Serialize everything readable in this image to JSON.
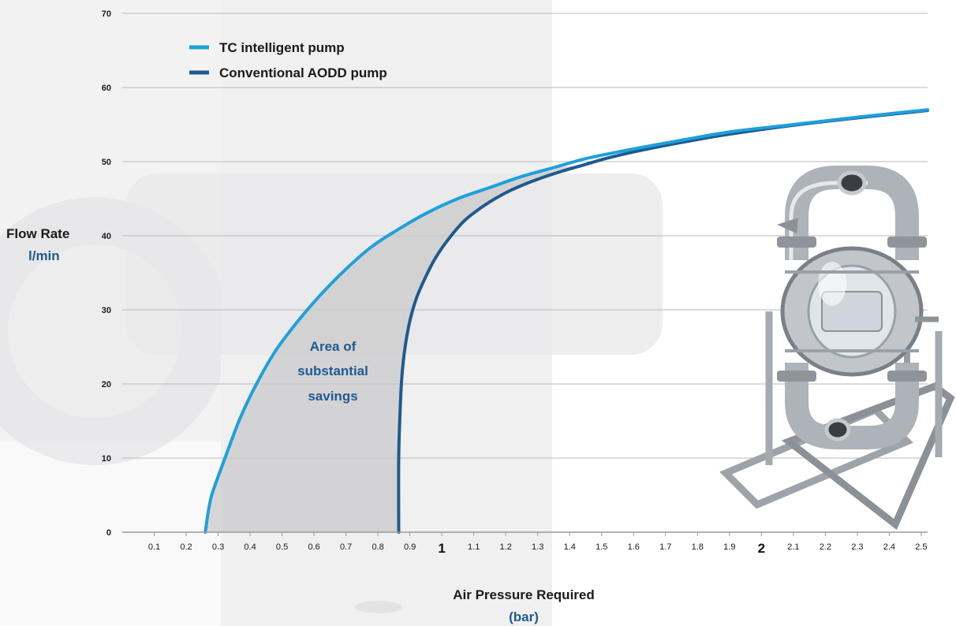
{
  "chart_data": {
    "type": "line",
    "xlabel": "Air Pressure Required",
    "xunit": "(bar)",
    "ylabel": "Flow Rate",
    "yunit": "l/min",
    "xlim": [
      0,
      2.52
    ],
    "ylim": [
      0,
      70
    ],
    "xticks": [
      {
        "value": 0.1,
        "label": "0.1"
      },
      {
        "value": 0.2,
        "label": "0.2"
      },
      {
        "value": 0.3,
        "label": "0.3"
      },
      {
        "value": 0.4,
        "label": "0.4"
      },
      {
        "value": 0.5,
        "label": "0.5"
      },
      {
        "value": 0.6,
        "label": "0.6"
      },
      {
        "value": 0.7,
        "label": "0.7"
      },
      {
        "value": 0.8,
        "label": "0.8"
      },
      {
        "value": 0.9,
        "label": "0.9"
      },
      {
        "value": 1.0,
        "label": "1",
        "major": true
      },
      {
        "value": 1.1,
        "label": "1.1"
      },
      {
        "value": 1.2,
        "label": "1.2"
      },
      {
        "value": 1.3,
        "label": "1.3"
      },
      {
        "value": 1.4,
        "label": "1.4"
      },
      {
        "value": 1.5,
        "label": "1.5"
      },
      {
        "value": 1.6,
        "label": "1.6"
      },
      {
        "value": 1.7,
        "label": "1.7"
      },
      {
        "value": 1.8,
        "label": "1.8"
      },
      {
        "value": 1.9,
        "label": "1.9"
      },
      {
        "value": 2.0,
        "label": "2",
        "major": true
      },
      {
        "value": 2.1,
        "label": "2.1"
      },
      {
        "value": 2.2,
        "label": "2.2"
      },
      {
        "value": 2.3,
        "label": "2.3"
      },
      {
        "value": 2.4,
        "label": "2.4"
      },
      {
        "value": 2.5,
        "label": "2.5"
      }
    ],
    "yticks": [
      0,
      10,
      20,
      30,
      40,
      50,
      60,
      70
    ],
    "grid": true,
    "legend_position": "top-left",
    "series": [
      {
        "name": "TC intelligent pump",
        "color": "#1ea0dc",
        "x": [
          0.26,
          0.27,
          0.28,
          0.3,
          0.33,
          0.37,
          0.42,
          0.48,
          0.55,
          0.62,
          0.7,
          0.78,
          0.85,
          0.95,
          1.05,
          1.15,
          1.25,
          1.35,
          1.45,
          1.55,
          1.7,
          1.9,
          2.1,
          2.3,
          2.52
        ],
        "y": [
          0,
          3,
          5,
          7.5,
          11,
          15.5,
          20,
          24.5,
          28.5,
          32,
          35.5,
          38.5,
          40.5,
          43,
          45,
          46.5,
          48,
          49.2,
          50.4,
          51.3,
          52.5,
          54,
          55,
          56,
          57
        ]
      },
      {
        "name": "Conventional AODD pump",
        "color": "#1f5a8f",
        "x": [
          0.865,
          0.865,
          0.87,
          0.875,
          0.885,
          0.9,
          0.92,
          0.95,
          0.98,
          1.02,
          1.07,
          1.13,
          1.2,
          1.28,
          1.36,
          1.44,
          1.52,
          1.62,
          1.75,
          1.9,
          2.1,
          2.3,
          2.52
        ],
        "y": [
          0,
          10,
          17,
          21,
          25,
          28.5,
          31.5,
          34.5,
          37,
          39.5,
          42,
          44,
          45.8,
          47.3,
          48.5,
          49.5,
          50.5,
          51.5,
          52.6,
          53.7,
          54.9,
          55.9,
          56.9
        ]
      }
    ],
    "annotation": [
      "Area of",
      "substantial",
      "savings"
    ]
  },
  "bg": {
    "fill_color": "#e0e0e2",
    "card_color": "#f2f2f3"
  },
  "pump": {
    "steel": "#b8bcc2",
    "steel_dark": "#6e737b"
  }
}
